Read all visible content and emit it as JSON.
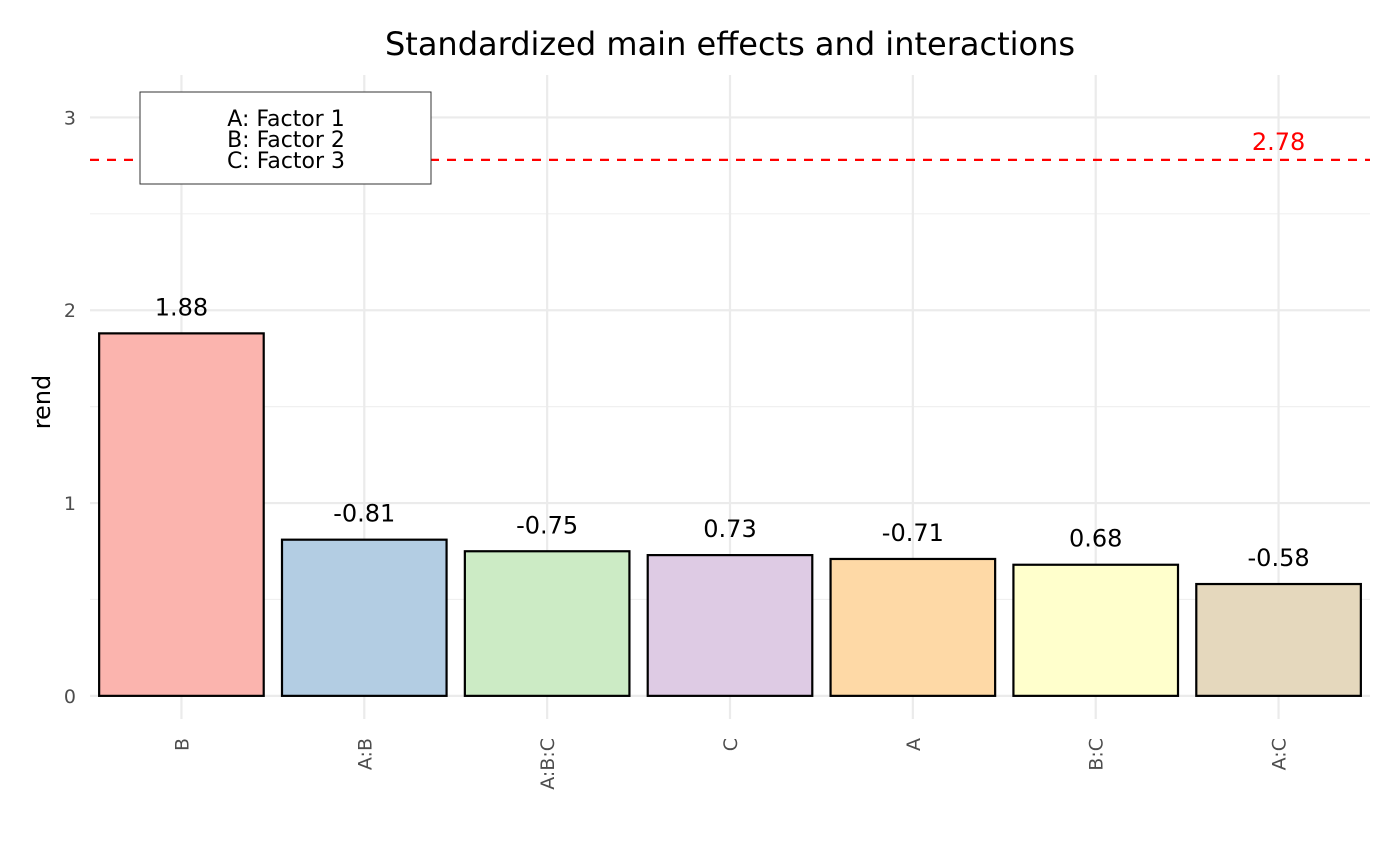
{
  "chart_data": {
    "type": "bar",
    "title": "Standardized main effects and interactions",
    "xlabel": "",
    "ylabel": "rend",
    "ylim": [
      -0.12,
      3.22
    ],
    "yticks": [
      0,
      1,
      2,
      3
    ],
    "grid": true,
    "categories": [
      "B",
      "A:B",
      "A:B:C",
      "C",
      "A",
      "B:C",
      "A:C"
    ],
    "values": [
      1.88,
      0.81,
      0.75,
      0.73,
      0.71,
      0.68,
      0.58
    ],
    "labels": [
      "1.88",
      "-0.81",
      "-0.75",
      "0.73",
      "-0.71",
      "0.68",
      "-0.58"
    ],
    "colors": [
      "#FBB4AE",
      "#B3CDE3",
      "#CCEBC5",
      "#DECBE4",
      "#FED9A6",
      "#FFFFCC",
      "#E5D8BD"
    ],
    "threshold": {
      "value": 2.78,
      "label": "2.78",
      "color": "#FF0000"
    },
    "legend": {
      "position": "top-left",
      "entries": [
        "A: Factor 1",
        "B: Factor 2",
        "C: Factor 3"
      ]
    }
  }
}
